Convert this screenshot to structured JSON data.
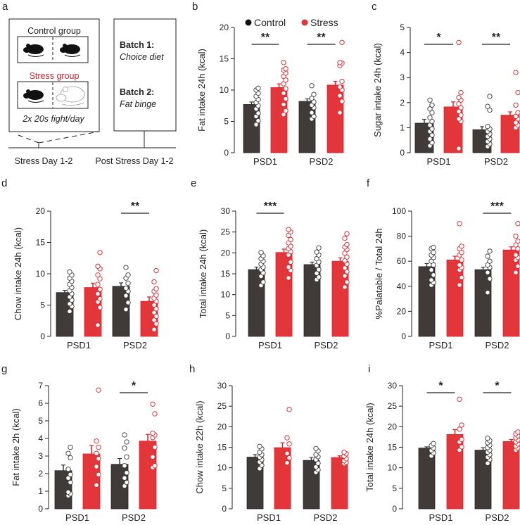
{
  "colors": {
    "control": "#403b38",
    "stress": "#e3363b",
    "stress_stroke": "#e41e26",
    "axis": "#231f20"
  },
  "panel_a": {
    "letter": "a",
    "control_group": "Control group",
    "stress_group": "Stress group",
    "fight_note": "2x 20s fight/day",
    "batch1_label": "Batch 1:",
    "batch1_value": "Choice diet",
    "batch2_label": "Batch 2:",
    "batch2_value": "Fat binge",
    "timeline_stress": "Stress Day 1-2",
    "timeline_post": "Post Stress Day 1-2"
  },
  "legend": [
    {
      "name": "Control"
    },
    {
      "name": "Stress"
    }
  ],
  "chart_data": [
    {
      "panel": "b",
      "type": "bar",
      "ylabel": "Fat intake 24h (kcal)",
      "ylim": [
        0,
        20
      ],
      "yticks": [
        0,
        5,
        10,
        15,
        20
      ],
      "categories": [
        "PSD1",
        "PSD2"
      ],
      "series": [
        {
          "name": "Control",
          "values": [
            7.7,
            8.2
          ],
          "sem": [
            0.4,
            0.4
          ],
          "points": [
            [
              4.5,
              5.1,
              5.8,
              6.3,
              7.0,
              7.5,
              8.0,
              8.5,
              9.0,
              9.5,
              10.0,
              10.3
            ],
            [
              5.4,
              5.8,
              6.4,
              7.2,
              7.6,
              8.1,
              8.7,
              9.3,
              10.7
            ]
          ]
        },
        {
          "name": "Stress",
          "values": [
            10.4,
            10.8
          ],
          "sem": [
            0.6,
            0.6
          ],
          "points": [
            [
              6.1,
              6.7,
              7.7,
              8.6,
              9.5,
              10.2,
              11.0,
              11.6,
              12.2,
              12.7,
              13.2,
              13.4,
              14.4
            ],
            [
              6.4,
              8.2,
              9.1,
              10.0,
              10.5,
              11.4,
              13.9,
              14.3,
              14.4,
              17.6
            ]
          ]
        }
      ],
      "significance": [
        {
          "category": 0,
          "label": "**"
        },
        {
          "category": 1,
          "label": "**"
        }
      ]
    },
    {
      "panel": "c",
      "type": "bar",
      "ylabel": "Sugar intake 24h (kcal)",
      "ylim": [
        0,
        5
      ],
      "yticks": [
        0,
        1,
        2,
        3,
        4,
        5
      ],
      "categories": [
        "PSD1",
        "PSD2"
      ],
      "series": [
        {
          "name": "Control",
          "values": [
            1.18,
            0.92
          ],
          "sem": [
            0.15,
            0.12
          ],
          "points": [
            [
              0.28,
              0.4,
              0.55,
              0.7,
              0.85,
              0.95,
              1.1,
              1.25,
              1.4,
              1.6,
              1.75,
              1.9,
              2.1
            ],
            [
              0.25,
              0.35,
              0.45,
              0.55,
              0.65,
              0.75,
              0.85,
              0.95,
              1.05,
              1.7,
              1.85,
              2.25
            ]
          ]
        },
        {
          "name": "Stress",
          "values": [
            1.83,
            1.5
          ],
          "sem": [
            0.2,
            0.13
          ],
          "points": [
            [
              0.17,
              1.25,
              1.35,
              1.5,
              1.65,
              1.8,
              1.95,
              2.1,
              2.2,
              2.4,
              4.4
            ],
            [
              1.0,
              1.1,
              1.2,
              1.35,
              1.45,
              1.6,
              1.9,
              2.4,
              3.2
            ]
          ]
        }
      ],
      "significance": [
        {
          "category": 0,
          "label": "*"
        },
        {
          "category": 1,
          "label": "**"
        }
      ]
    },
    {
      "panel": "d",
      "type": "bar",
      "ylabel": "Chow intake 24h (kcal)",
      "ylim": [
        0,
        20
      ],
      "yticks": [
        0,
        5,
        10,
        15,
        20
      ],
      "categories": [
        "PSD1",
        "PSD2"
      ],
      "series": [
        {
          "name": "Control",
          "values": [
            7.0,
            8.0
          ],
          "sem": [
            0.35,
            0.55
          ],
          "points": [
            [
              4.0,
              4.8,
              5.2,
              5.8,
              6.3,
              6.8,
              7.3,
              7.8,
              8.3,
              8.8,
              9.3,
              9.8,
              10.3
            ],
            [
              4.3,
              5.4,
              6.5,
              7.2,
              7.7,
              8.5,
              9.3,
              9.8,
              11.0
            ]
          ]
        },
        {
          "name": "Stress",
          "values": [
            7.8,
            5.6
          ],
          "sem": [
            0.7,
            0.7
          ],
          "points": [
            [
              1.8,
              4.6,
              5.5,
              6.0,
              6.8,
              7.5,
              8.3,
              9.2,
              9.8,
              10.8,
              11.2,
              13.4
            ],
            [
              1.1,
              2.0,
              2.6,
              3.2,
              3.8,
              4.4,
              5.0,
              5.6,
              6.1,
              6.6,
              7.2,
              7.6,
              8.7,
              10.5
            ]
          ]
        }
      ],
      "significance": [
        {
          "category": 1,
          "label": "**"
        }
      ]
    },
    {
      "panel": "e",
      "type": "bar",
      "ylabel": "Total intake 24h (kcal)",
      "ylim": [
        0,
        30
      ],
      "yticks": [
        0,
        5,
        10,
        15,
        20,
        25,
        30
      ],
      "categories": [
        "PSD1",
        "PSD2"
      ],
      "series": [
        {
          "name": "Control",
          "values": [
            16.0,
            17.2
          ],
          "sem": [
            0.6,
            0.6
          ],
          "points": [
            [
              12.2,
              13.0,
              14.4,
              15.2,
              16.0,
              16.6,
              17.3,
              18.0,
              18.6,
              19.3,
              20.1
            ],
            [
              13.6,
              14.2,
              15.1,
              16.0,
              17.0,
              17.8,
              18.6,
              19.5,
              20.2,
              21.2
            ]
          ]
        },
        {
          "name": "Stress",
          "values": [
            20.1,
            18.0
          ],
          "sem": [
            0.8,
            0.8
          ],
          "points": [
            [
              14.0,
              15.8,
              16.6,
              17.8,
              19.5,
              20.3,
              21.0,
              21.6,
              22.4,
              23.2,
              24.2,
              25.0,
              25.6
            ],
            [
              11.8,
              13.0,
              14.5,
              15.5,
              16.4,
              17.3,
              18.1,
              19.0,
              19.9,
              20.8,
              21.4,
              22.0,
              23.5,
              24.6
            ]
          ]
        }
      ],
      "significance": [
        {
          "category": 0,
          "label": "***"
        }
      ]
    },
    {
      "panel": "f",
      "type": "bar",
      "ylabel": "%Palatable / Total 24h",
      "ylim": [
        0,
        100
      ],
      "yticks": [
        0,
        20,
        40,
        60,
        80,
        100
      ],
      "categories": [
        "PSD1",
        "PSD2"
      ],
      "series": [
        {
          "name": "Control",
          "values": [
            55.7,
            53.3
          ],
          "sem": [
            2.5,
            2.0
          ],
          "points": [
            [
              41,
              43,
              45,
              49,
              53,
              57,
              60,
              63,
              65,
              67,
              70,
              71
            ],
            [
              35,
              46,
              51,
              55,
              57,
              60,
              64,
              68
            ]
          ]
        },
        {
          "name": "Stress",
          "values": [
            61.0,
            69.0
          ],
          "sem": [
            3.0,
            2.5
          ],
          "points": [
            [
              41,
              47,
              53,
              55,
              57,
              61,
              65,
              67,
              70,
              72,
              90
            ],
            [
              51,
              56,
              61,
              63,
              65,
              70,
              73,
              76,
              80,
              90
            ]
          ]
        }
      ],
      "significance": [
        {
          "category": 1,
          "label": "***"
        }
      ]
    },
    {
      "panel": "g",
      "type": "bar",
      "ylabel": "Fat intake 2h (kcal)",
      "ylim": [
        0,
        7
      ],
      "yticks": [
        0,
        1,
        2,
        3,
        4,
        5,
        6,
        7
      ],
      "categories": [
        "PSD1",
        "PSD2"
      ],
      "series": [
        {
          "name": "Control",
          "values": [
            2.17,
            2.53
          ],
          "sem": [
            0.32,
            0.33
          ],
          "points": [
            [
              0.75,
              0.85,
              0.95,
              1.5,
              1.75,
              1.95,
              2.25,
              2.9,
              3.15,
              3.5
            ],
            [
              1.3,
              1.5,
              1.75,
              2.05,
              2.45,
              2.95,
              3.45,
              3.8,
              4.2
            ]
          ]
        },
        {
          "name": "Stress",
          "values": [
            3.12,
            3.85
          ],
          "sem": [
            0.48,
            0.38
          ],
          "points": [
            [
              1.35,
              1.95,
              2.4,
              2.85,
              3.15,
              3.5,
              3.85,
              6.75
            ],
            [
              2.35,
              2.45,
              2.95,
              3.5,
              4.05,
              4.2,
              4.3,
              5.4,
              5.95
            ]
          ]
        }
      ],
      "significance": [
        {
          "category": 1,
          "label": "*"
        }
      ]
    },
    {
      "panel": "h",
      "type": "bar",
      "ylabel": "Chow intake 22h (kcal)",
      "ylim": [
        0,
        30
      ],
      "yticks": [
        0,
        5,
        10,
        15,
        20,
        25,
        30
      ],
      "categories": [
        "PSD1",
        "PSD2"
      ],
      "series": [
        {
          "name": "Control",
          "values": [
            12.6,
            11.8
          ],
          "sem": [
            0.6,
            0.7
          ],
          "points": [
            [
              9.8,
              10.6,
              11.4,
              12.0,
              12.6,
              13.2,
              13.8,
              14.6,
              15.2
            ],
            [
              8.9,
              9.5,
              10.2,
              11.1,
              12.0,
              12.7,
              13.2,
              14.1,
              14.7
            ]
          ]
        },
        {
          "name": "Stress",
          "values": [
            14.9,
            12.5
          ],
          "sem": [
            1.2,
            0.4
          ],
          "points": [
            [
              11.2,
              12.4,
              13.5,
              15.8,
              17.3,
              24.2
            ],
            [
              11.0,
              11.3,
              11.7,
              12.2,
              12.8,
              13.4,
              13.8
            ]
          ]
        }
      ],
      "significance": []
    },
    {
      "panel": "i",
      "type": "bar",
      "ylabel": "Total intake 24h (kcal)",
      "ylim": [
        0,
        30
      ],
      "yticks": [
        0,
        5,
        10,
        15,
        20,
        25,
        30
      ],
      "categories": [
        "PSD1",
        "PSD2"
      ],
      "series": [
        {
          "name": "Control",
          "values": [
            14.8,
            14.3
          ],
          "sem": [
            0.3,
            0.6
          ],
          "points": [
            [
              12.9,
              13.6,
              14.2,
              14.8,
              15.4,
              15.9
            ],
            [
              11.1,
              12.0,
              12.6,
              13.2,
              13.8,
              14.3,
              14.9,
              15.5,
              16.1,
              16.6,
              17.2
            ]
          ]
        },
        {
          "name": "Stress",
          "values": [
            18.1,
            16.4
          ],
          "sem": [
            1.2,
            0.5
          ],
          "points": [
            [
              14.3,
              15.1,
              16.3,
              16.9,
              19.4,
              20.4,
              26.7
            ],
            [
              14.3,
              14.8,
              15.3,
              15.8,
              16.3,
              16.8,
              17.3,
              17.8,
              18.3,
              18.7
            ]
          ]
        }
      ],
      "significance": [
        {
          "category": 0,
          "label": "*"
        },
        {
          "category": 1,
          "label": "*"
        }
      ]
    }
  ]
}
